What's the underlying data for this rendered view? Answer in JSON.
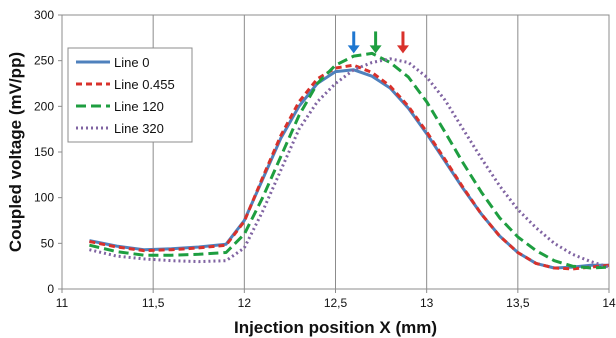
{
  "chart_data": {
    "type": "line",
    "xlabel": "Injection position X (mm)",
    "ylabel": "Coupled voltage (mV/pp)",
    "xlim": [
      11,
      14
    ],
    "ylim": [
      0,
      300
    ],
    "x_ticks": [
      11,
      11.5,
      12,
      12.5,
      13,
      13.5,
      14
    ],
    "x_tick_labels": [
      "11",
      "11,5",
      "12",
      "12,5",
      "13",
      "13,5",
      "14"
    ],
    "y_ticks": [
      0,
      50,
      100,
      150,
      200,
      250,
      300
    ],
    "y_tick_labels": [
      "0",
      "50",
      "100",
      "150",
      "200",
      "250",
      "300"
    ],
    "grid": "vertical",
    "legend_position": "top-left",
    "series": [
      {
        "name": "Line 0",
        "color": "#4f81bd",
        "dash": "solid",
        "x": [
          11.15,
          11.3,
          11.45,
          11.6,
          11.75,
          11.9,
          12.0,
          12.1,
          12.2,
          12.3,
          12.4,
          12.5,
          12.6,
          12.7,
          12.8,
          12.9,
          13.0,
          13.1,
          13.2,
          13.3,
          13.4,
          13.5,
          13.6,
          13.7,
          13.8,
          13.9,
          14.0
        ],
        "y": [
          53,
          47,
          43,
          44,
          46,
          49,
          75,
          120,
          165,
          200,
          225,
          238,
          240,
          233,
          220,
          198,
          170,
          140,
          110,
          82,
          58,
          40,
          28,
          23,
          24,
          26,
          26
        ]
      },
      {
        "name": "Line 0.455",
        "color": "#d9312b",
        "dash": "dashed",
        "x": [
          11.15,
          11.3,
          11.45,
          11.6,
          11.75,
          11.9,
          12.0,
          12.1,
          12.2,
          12.3,
          12.4,
          12.5,
          12.6,
          12.7,
          12.8,
          12.9,
          13.0,
          13.1,
          13.2,
          13.3,
          13.4,
          13.5,
          13.6,
          13.7,
          13.8,
          13.9,
          14.0
        ],
        "y": [
          52,
          46,
          42,
          43,
          45,
          48,
          74,
          122,
          168,
          205,
          230,
          242,
          245,
          237,
          222,
          200,
          172,
          142,
          111,
          82,
          58,
          40,
          28,
          23,
          22,
          24,
          26
        ]
      },
      {
        "name": "Line 120",
        "color": "#1e9e40",
        "dash": "longdash",
        "x": [
          11.15,
          11.3,
          11.45,
          11.6,
          11.75,
          11.9,
          12.0,
          12.1,
          12.2,
          12.3,
          12.4,
          12.5,
          12.6,
          12.7,
          12.8,
          12.9,
          13.0,
          13.1,
          13.2,
          13.3,
          13.4,
          13.5,
          13.6,
          13.7,
          13.8,
          13.9,
          14.0
        ],
        "y": [
          48,
          41,
          37,
          37,
          38,
          40,
          60,
          100,
          145,
          190,
          225,
          245,
          255,
          258,
          248,
          232,
          205,
          172,
          138,
          106,
          78,
          57,
          42,
          31,
          25,
          23,
          24
        ]
      },
      {
        "name": "Line 320",
        "color": "#8064a2",
        "dash": "dotted",
        "x": [
          11.15,
          11.3,
          11.45,
          11.6,
          11.75,
          11.9,
          12.0,
          12.1,
          12.2,
          12.3,
          12.4,
          12.5,
          12.6,
          12.7,
          12.8,
          12.9,
          13.0,
          13.1,
          13.2,
          13.3,
          13.4,
          13.5,
          13.6,
          13.7,
          13.8,
          13.9,
          14.0
        ],
        "y": [
          43,
          36,
          33,
          31,
          30,
          31,
          45,
          85,
          130,
          175,
          205,
          225,
          240,
          248,
          252,
          248,
          232,
          207,
          175,
          143,
          113,
          87,
          67,
          50,
          38,
          30,
          24
        ]
      }
    ],
    "annotations": [
      {
        "type": "arrow",
        "color": "#1f77d0",
        "x": 12.6,
        "y_top": 282,
        "y_bottom": 258
      },
      {
        "type": "arrow",
        "color": "#1e9e40",
        "x": 12.72,
        "y_top": 282,
        "y_bottom": 258
      },
      {
        "type": "arrow",
        "color": "#d9312b",
        "x": 12.87,
        "y_top": 282,
        "y_bottom": 258
      }
    ]
  }
}
